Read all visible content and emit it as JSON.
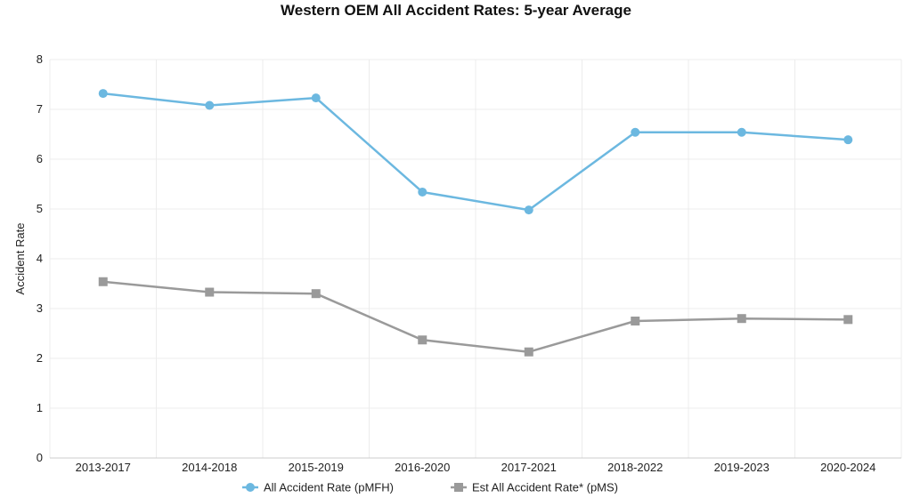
{
  "chart_data": {
    "type": "line",
    "title": "Western OEM All Accident Rates: 5-year Average",
    "ylabel": "Accident Rate",
    "xlabel": "",
    "ylim": [
      0,
      8
    ],
    "yticks": [
      0,
      1,
      2,
      3,
      4,
      5,
      6,
      7,
      8
    ],
    "grid": true,
    "legend_position": "bottom",
    "categories": [
      "2013-2017",
      "2014-2018",
      "2015-2019",
      "2016-2020",
      "2017-2021",
      "2018-2022",
      "2019-2023",
      "2020-2024"
    ],
    "series": [
      {
        "name": "All Accident Rate (pMFH)",
        "marker": "circle",
        "color": "#6cb8e0",
        "values": [
          7.32,
          7.08,
          7.23,
          5.34,
          4.98,
          6.54,
          6.54,
          6.39
        ]
      },
      {
        "name": "Est All Accident Rate* (pMS)",
        "marker": "square",
        "color": "#9a9a9a",
        "values": [
          3.54,
          3.33,
          3.3,
          2.37,
          2.13,
          2.75,
          2.8,
          2.78
        ]
      }
    ]
  }
}
